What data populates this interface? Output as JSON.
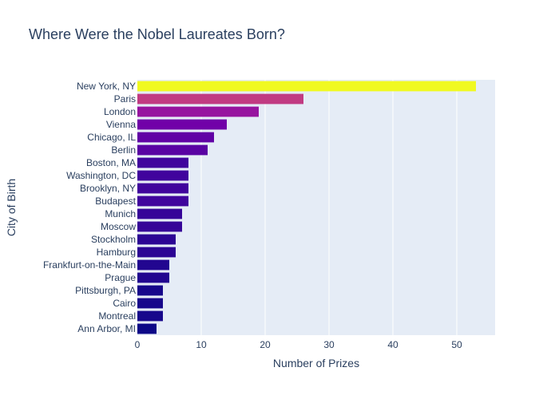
{
  "chart_data": {
    "type": "bar",
    "orientation": "horizontal",
    "title": "Where Were the Nobel Laureates Born?",
    "xlabel": "Number of Prizes",
    "ylabel": "City of Birth",
    "xlim": [
      0,
      56
    ],
    "xticks": [
      0,
      10,
      20,
      30,
      40,
      50
    ],
    "grid": true,
    "colorscale": "plasma",
    "categories": [
      "New York, NY",
      "Paris",
      "London",
      "Vienna",
      "Chicago, IL",
      "Berlin",
      "Boston, MA",
      "Washington, DC",
      "Brooklyn, NY",
      "Budapest",
      "Munich",
      "Moscow",
      "Stockholm",
      "Hamburg",
      "Frankfurt-on-the-Main",
      "Prague",
      "Pittsburgh, PA",
      "Cairo",
      "Montreal",
      "Ann Arbor, MI"
    ],
    "values": [
      53,
      26,
      19,
      14,
      12,
      11,
      8,
      8,
      8,
      8,
      7,
      7,
      6,
      6,
      5,
      5,
      4,
      4,
      4,
      3
    ]
  }
}
